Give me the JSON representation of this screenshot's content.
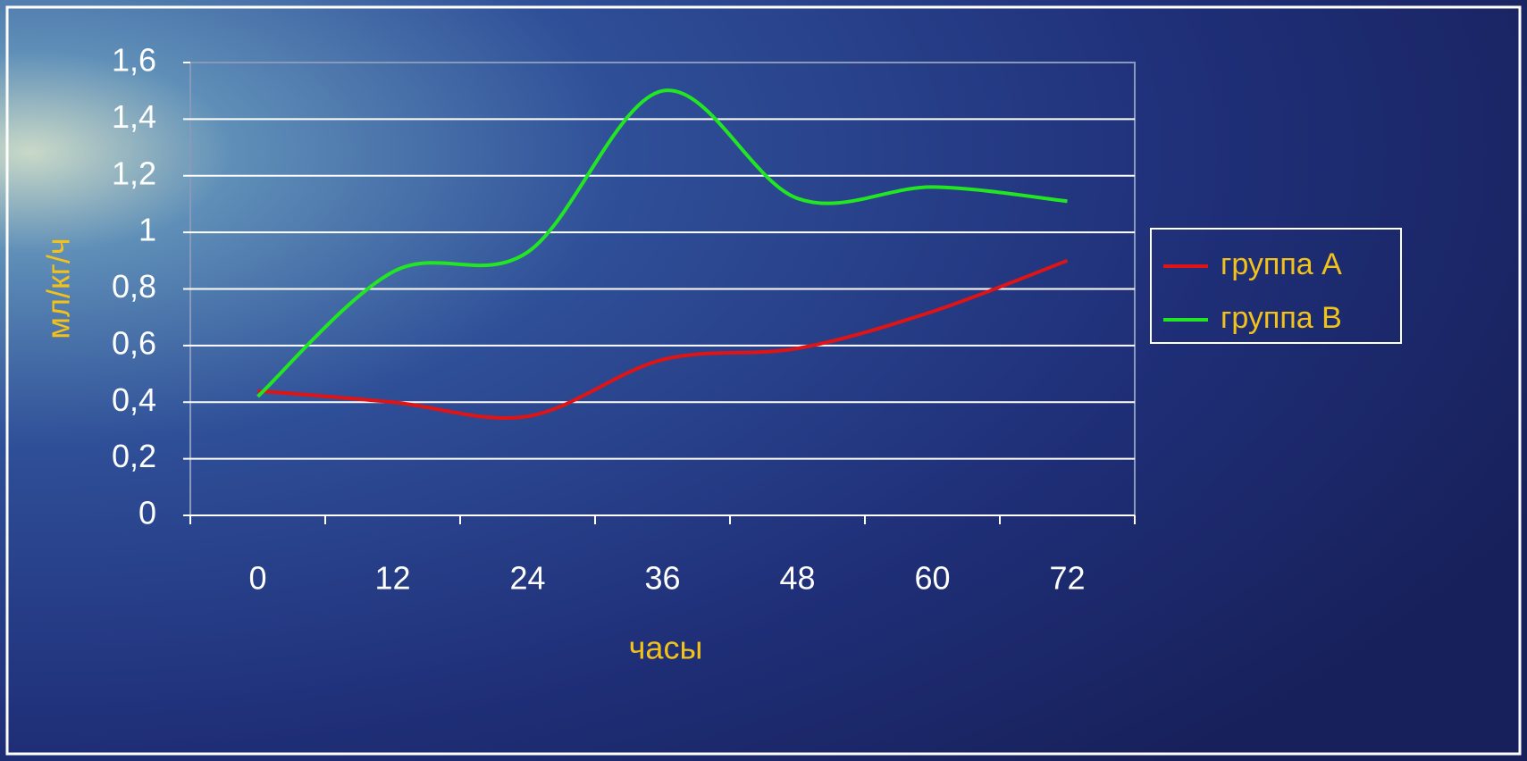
{
  "chart_data": {
    "type": "line",
    "y_label": "мл/кг/ч",
    "x_label": "часы",
    "categories": [
      "0",
      "12",
      "24",
      "36",
      "48",
      "60",
      "72"
    ],
    "series": [
      {
        "name": "группа А",
        "color": "#e01414",
        "values": [
          0.44,
          0.4,
          0.35,
          0.55,
          0.59,
          0.72,
          0.9
        ]
      },
      {
        "name": "группа В",
        "color": "#22e622",
        "values": [
          0.42,
          0.86,
          0.93,
          1.5,
          1.12,
          1.16,
          1.11
        ]
      }
    ],
    "ylim": [
      0,
      1.6
    ],
    "yticks": [
      0,
      {
        "value": 0.2,
        "label": "0,2"
      },
      {
        "value": 0.4,
        "label": "0,4"
      },
      {
        "value": 0.6,
        "label": "0,6"
      },
      {
        "value": 0.8,
        "label": "0,8"
      },
      1,
      {
        "value": 1.2,
        "label": "1,2"
      },
      {
        "value": 1.4,
        "label": "1,4"
      },
      {
        "value": 1.6,
        "label": "1,6"
      }
    ],
    "grid": true,
    "smooth": true,
    "legend": "right"
  }
}
